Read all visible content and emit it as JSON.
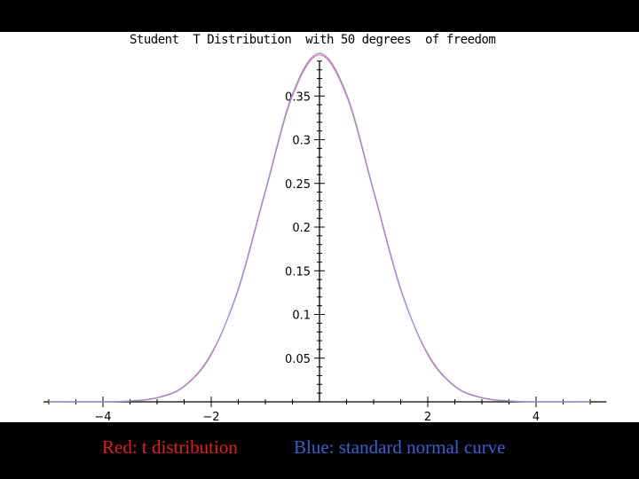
{
  "colors": {
    "background": "#000000",
    "plot_background": "#ffffff",
    "t_curve": "#e27a8c",
    "normal_curve": "#9a8ae0",
    "legend_red": "#e0201a",
    "legend_blue": "#3a5fd0"
  },
  "legend": {
    "red_text": "Red: t distribution",
    "blue_text": "Blue: standard normal curve"
  },
  "chart_data": {
    "type": "line",
    "title": "Student  T Distribution  with 50 degrees  of freedom",
    "xlabel": "",
    "ylabel": "",
    "xlim": [
      -5.1,
      5.3
    ],
    "ylim": [
      0,
      0.39
    ],
    "x_ticks": [
      -4,
      -2,
      2,
      4
    ],
    "x_tick_labels": [
      "−4",
      "−2",
      "2",
      "4"
    ],
    "y_ticks": [
      0.05,
      0.1,
      0.15,
      0.2,
      0.25,
      0.3,
      0.35
    ],
    "y_tick_labels": [
      "0.05",
      "0.1",
      "0.15",
      "0.2",
      "0.25",
      "0.3",
      "0.35"
    ],
    "grid": false,
    "legend": "below plot",
    "series": [
      {
        "name": "t distribution",
        "x": [
          -5,
          -4.5,
          -4,
          -3.5,
          -3,
          -2.5,
          -2,
          -1.5,
          -1,
          -0.5,
          0,
          0.5,
          1,
          1.5,
          2,
          2.5,
          3,
          3.5,
          4,
          4.5,
          5
        ],
        "y": [
          1e-05,
          5e-05,
          0.0002,
          0.0011,
          0.0049,
          0.018,
          0.0551,
          0.1282,
          0.2402,
          0.3501,
          0.397,
          0.3501,
          0.2402,
          0.1282,
          0.0551,
          0.018,
          0.0049,
          0.0011,
          0.0002,
          5e-05,
          1e-05
        ]
      },
      {
        "name": "standard normal curve",
        "x": [
          -5,
          -4.5,
          -4,
          -3.5,
          -3,
          -2.5,
          -2,
          -1.5,
          -1,
          -0.5,
          0,
          0.5,
          1,
          1.5,
          2,
          2.5,
          3,
          3.5,
          4,
          4.5,
          5
        ],
        "y": [
          1.5e-06,
          1.6e-05,
          0.00013,
          0.00087,
          0.0044,
          0.0175,
          0.054,
          0.1295,
          0.242,
          0.3521,
          0.3989,
          0.3521,
          0.242,
          0.1295,
          0.054,
          0.0175,
          0.0044,
          0.00087,
          0.00013,
          1.6e-05,
          1.5e-06
        ]
      }
    ]
  }
}
